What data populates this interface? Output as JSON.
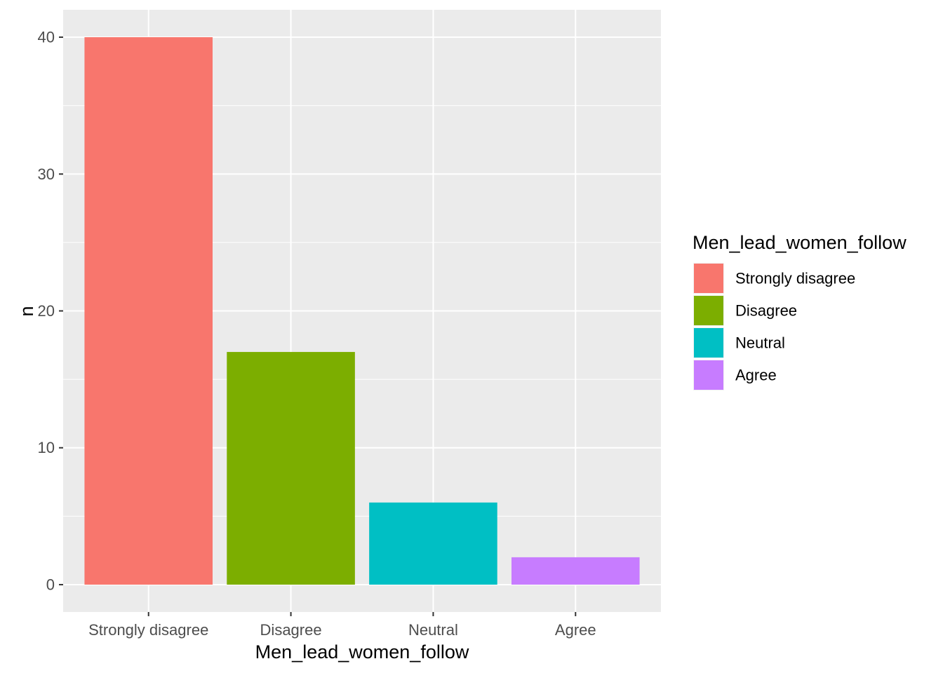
{
  "chart_data": {
    "type": "bar",
    "categories": [
      "Strongly disagree",
      "Disagree",
      "Neutral",
      "Agree"
    ],
    "values": [
      40,
      17,
      6,
      2
    ],
    "xlabel": "Men_lead_women_follow",
    "ylabel": "n",
    "ylim": [
      -2,
      42
    ],
    "yticks": [
      0,
      10,
      20,
      30,
      40
    ],
    "grid": true,
    "colors": [
      "#F8766D",
      "#7CAE00",
      "#00BFC4",
      "#C77CFF"
    ],
    "panel_background": "#EBEBEB",
    "legend": {
      "title": "Men_lead_women_follow",
      "position": "right",
      "entries": [
        "Strongly disagree",
        "Disagree",
        "Neutral",
        "Agree"
      ]
    }
  }
}
